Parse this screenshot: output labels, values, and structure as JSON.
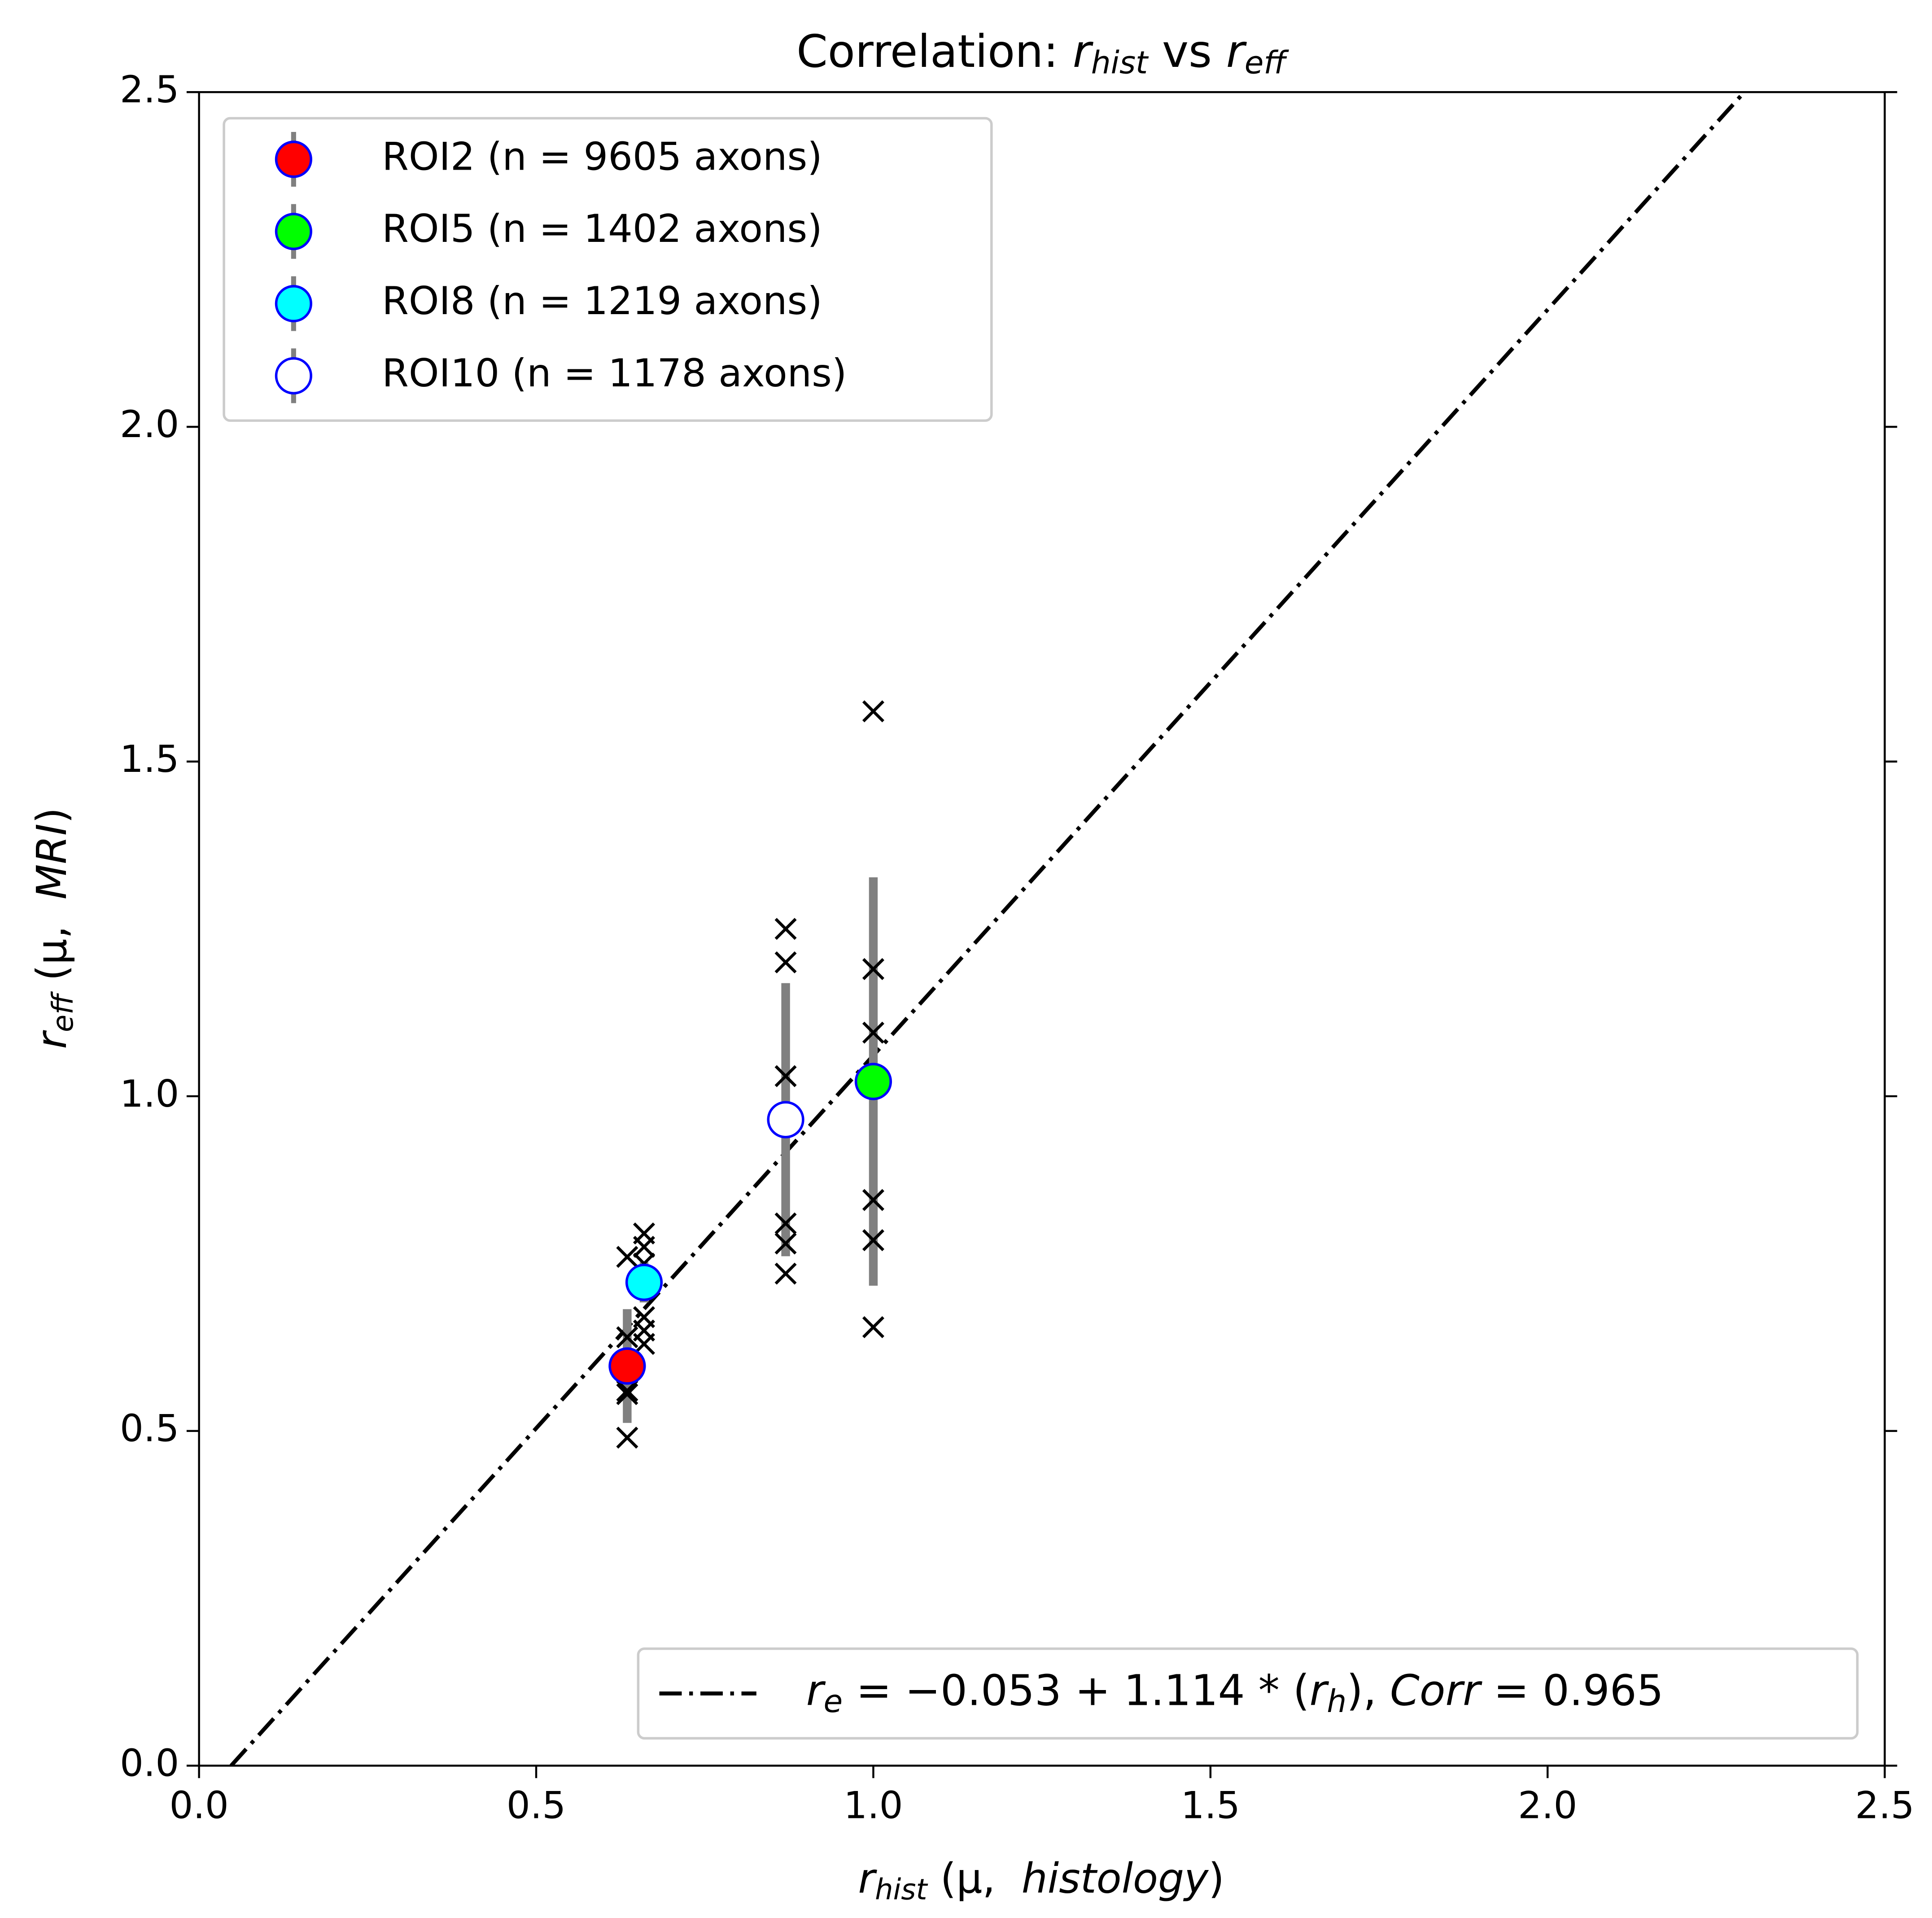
{
  "chart_data": {
    "type": "scatter",
    "title": [
      "Correlation: ",
      "r",
      "hist",
      " vs ",
      "r",
      "eff"
    ],
    "x_label": [
      "r",
      "hist",
      " (μ,  ",
      "histology",
      ")"
    ],
    "y_label": [
      "r",
      "eff",
      " (μ,  ",
      "MRI",
      ")"
    ],
    "xlim": [
      0,
      2.5
    ],
    "ylim": [
      0,
      2.5
    ],
    "xticks": [
      {
        "value": 0,
        "label": "0.0"
      },
      0.5,
      {
        "value": 1,
        "label": "1.0"
      },
      1.5,
      {
        "value": 2,
        "label": "2.0"
      },
      2.5
    ],
    "yticks": [
      {
        "value": 0,
        "label": "0.0"
      },
      0.5,
      {
        "value": 1,
        "label": "1.0"
      },
      1.5,
      {
        "value": 2,
        "label": "2.0"
      },
      2.5
    ],
    "legend": "upper left",
    "error_color": "#808080",
    "edge_color": "#0000ff",
    "series": [
      {
        "name": "ROI2 (n = 9605 axons)",
        "color": "#ff0000",
        "x": [
          0.635
        ],
        "y": [
          0.597
        ],
        "error": [
          0.085
        ]
      },
      {
        "name": "ROI5 (n = 1402 axons)",
        "color": "#00ff00",
        "x": [
          1.0
        ],
        "y": [
          1.022
        ],
        "error": [
          0.305
        ]
      },
      {
        "name": "ROI8 (n = 1219 axons)",
        "color": "#00ffff",
        "x": [
          0.66
        ],
        "y": [
          0.722
        ],
        "error": [
          0.03
        ]
      },
      {
        "name": "ROI10 (n = 1178 axons)",
        "color": "#ffffff",
        "x": [
          0.87
        ],
        "y": [
          0.965
        ],
        "error": [
          0.204
        ]
      }
    ],
    "samples": {
      "color": "#000000",
      "x": [
        0.635,
        0.635,
        0.635,
        0.635,
        0.635,
        0.635,
        0.66,
        0.66,
        0.66,
        0.66,
        0.66,
        0.66,
        0.87,
        0.87,
        0.87,
        0.87,
        0.87,
        0.87,
        1.0,
        1.0,
        1.0,
        1.0,
        1.0,
        1.0
      ],
      "y": [
        0.76,
        0.64,
        0.6,
        0.56,
        0.555,
        0.49,
        0.795,
        0.775,
        0.75,
        0.67,
        0.65,
        0.63,
        1.25,
        1.2,
        1.03,
        0.81,
        0.78,
        0.735,
        1.575,
        1.19,
        1.095,
        0.845,
        0.785,
        0.655
      ]
    },
    "fit": {
      "intercept": -0.053,
      "slope": 1.114,
      "color": "#000000",
      "legend": "lower right",
      "label": [
        "r",
        "e",
        " = −0.053 + 1.114 * (",
        "r",
        "h",
        "), ",
        "Corr",
        " = 0.965"
      ]
    }
  }
}
